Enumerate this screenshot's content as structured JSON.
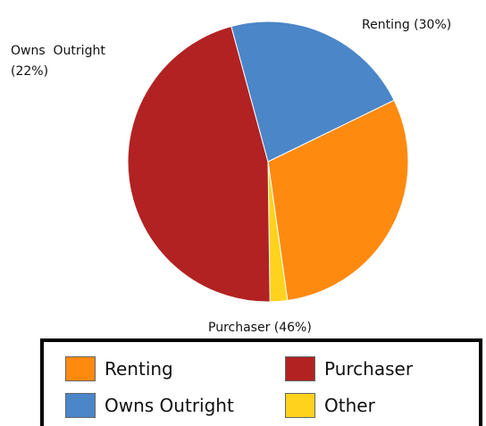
{
  "chart_data": {
    "type": "pie",
    "title": "",
    "start_angle_deg": 64,
    "direction": "clockwise",
    "slices": [
      {
        "name": "Renting",
        "value": 30,
        "label": "Renting (30%)",
        "color": "#FF8A10"
      },
      {
        "name": "Other",
        "value": 2,
        "label": "",
        "color": "#FFD21E"
      },
      {
        "name": "Purchaser",
        "value": 46,
        "label": "Purchaser (46%)",
        "color": "#B22222"
      },
      {
        "name": "Owns Outright",
        "value": 22,
        "label": "Owns Outright (22%)",
        "color": "#4A86C8"
      }
    ],
    "labels": {
      "renting": "Renting (30%)",
      "purchaser": "Purchaser (46%)",
      "owns_line1": "Owns  Outright",
      "owns_line2": "(22%)"
    },
    "legend": {
      "placement": "bottom",
      "items": [
        {
          "label": "Renting",
          "color": "#FF8A10"
        },
        {
          "label": "Purchaser",
          "color": "#B22222"
        },
        {
          "label": "Owns Outright",
          "color": "#4A86C8"
        },
        {
          "label": "Other",
          "color": "#FFD21E"
        }
      ]
    }
  }
}
